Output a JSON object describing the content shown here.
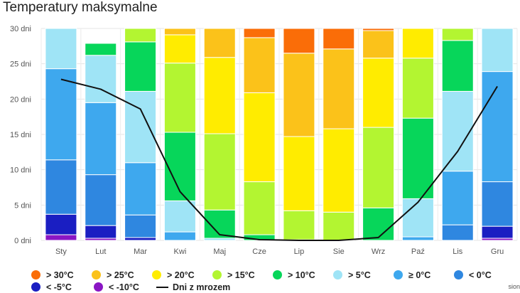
{
  "title": "Temperatury maksymalne",
  "credit": "sion",
  "chart_data": {
    "type": "bar",
    "stacked": true,
    "title": "Temperatury maksymalne",
    "xlabel": "",
    "ylabel": "",
    "ylim": [
      0,
      30
    ],
    "yticks": [
      "0 dni",
      "5 dni",
      "10 dni",
      "15 dni",
      "20 dni",
      "25 dni",
      "30 dni"
    ],
    "grid": true,
    "legend_position": "bottom",
    "categories": [
      "Sty",
      "Lut",
      "Mar",
      "Kwi",
      "Maj",
      "Cze",
      "Lip",
      "Sie",
      "Wrz",
      "Paź",
      "Lis",
      "Gru"
    ],
    "days_in_month": [
      31,
      28,
      31,
      30,
      31,
      30,
      31,
      31,
      30,
      31,
      30,
      31
    ],
    "series": [
      {
        "name": "< -10°C",
        "color": "#8a16c4",
        "values": [
          0.8,
          0.3,
          0,
          0,
          0,
          0,
          0,
          0,
          0,
          0,
          0,
          0.3
        ]
      },
      {
        "name": "< -5°C",
        "color": "#1a1ec2",
        "values": [
          2.9,
          1.8,
          0.4,
          0,
          0,
          0,
          0,
          0,
          0,
          0,
          0,
          1.7
        ]
      },
      {
        "name": "< 0°C",
        "color": "#2f87e0",
        "values": [
          7.7,
          7.2,
          3.2,
          0,
          0,
          0,
          0,
          0,
          0,
          0,
          2.2,
          6.3
        ]
      },
      {
        "name": "≥ 0°C",
        "color": "#3ea8ee",
        "values": [
          12.9,
          10.2,
          7.4,
          1.2,
          0,
          0,
          0,
          0,
          0,
          0.5,
          7.6,
          15.6
        ]
      },
      {
        "name": "> 5°C",
        "color": "#9fe4f6",
        "values": [
          6.7,
          6.7,
          10.1,
          4.4,
          0.3,
          0,
          0,
          0,
          0,
          5.4,
          11.3,
          7.1
        ]
      },
      {
        "name": "> 10°C",
        "color": "#07d65a",
        "values": [
          0,
          1.7,
          7.0,
          9.7,
          4.0,
          0.8,
          0.1,
          0,
          4.6,
          11.4,
          7.2,
          0
        ]
      },
      {
        "name": "> 15°C",
        "color": "#b3f531",
        "values": [
          0,
          0.1,
          3.3,
          9.8,
          10.8,
          7.5,
          4.1,
          4.0,
          11.4,
          8.5,
          2.0,
          0
        ]
      },
      {
        "name": "> 20°C",
        "color": "#ffec00",
        "values": [
          0,
          0,
          0,
          4.0,
          10.8,
          12.6,
          10.5,
          11.8,
          9.8,
          4.4,
          0,
          0
        ]
      },
      {
        "name": "> 25°C",
        "color": "#fbc21a",
        "values": [
          0,
          0,
          0,
          0.9,
          4.1,
          7.8,
          11.8,
          11.3,
          3.9,
          0,
          0,
          0
        ]
      },
      {
        "name": "> 30°C",
        "color": "#fa6d08",
        "values": [
          0,
          0,
          0,
          0,
          0,
          1.3,
          4.5,
          3.9,
          0.4,
          0,
          0,
          0
        ]
      }
    ],
    "line_series": {
      "name": "Dni z mrozem",
      "color": "#111111",
      "values": [
        22.8,
        21.4,
        18.6,
        6.9,
        0.8,
        0.1,
        0,
        0,
        0.4,
        5.4,
        12.6,
        21.8
      ]
    }
  },
  "legend": {
    "row1": [
      {
        "label": "> 30°C",
        "color": "#fa6d08"
      },
      {
        "label": "> 25°C",
        "color": "#fbc21a"
      },
      {
        "label": "> 20°C",
        "color": "#ffec00"
      },
      {
        "label": "> 15°C",
        "color": "#b3f531"
      },
      {
        "label": "> 10°C",
        "color": "#07d65a"
      },
      {
        "label": "> 5°C",
        "color": "#9fe4f6"
      },
      {
        "label": "≥ 0°C",
        "color": "#3ea8ee"
      },
      {
        "label": "< 0°C",
        "color": "#2f87e0"
      }
    ],
    "row2": [
      {
        "label": "< -5°C",
        "color": "#1a1ec2"
      },
      {
        "label": "< -10°C",
        "color": "#8a16c4"
      }
    ],
    "line_label": "Dni z mrozem"
  }
}
